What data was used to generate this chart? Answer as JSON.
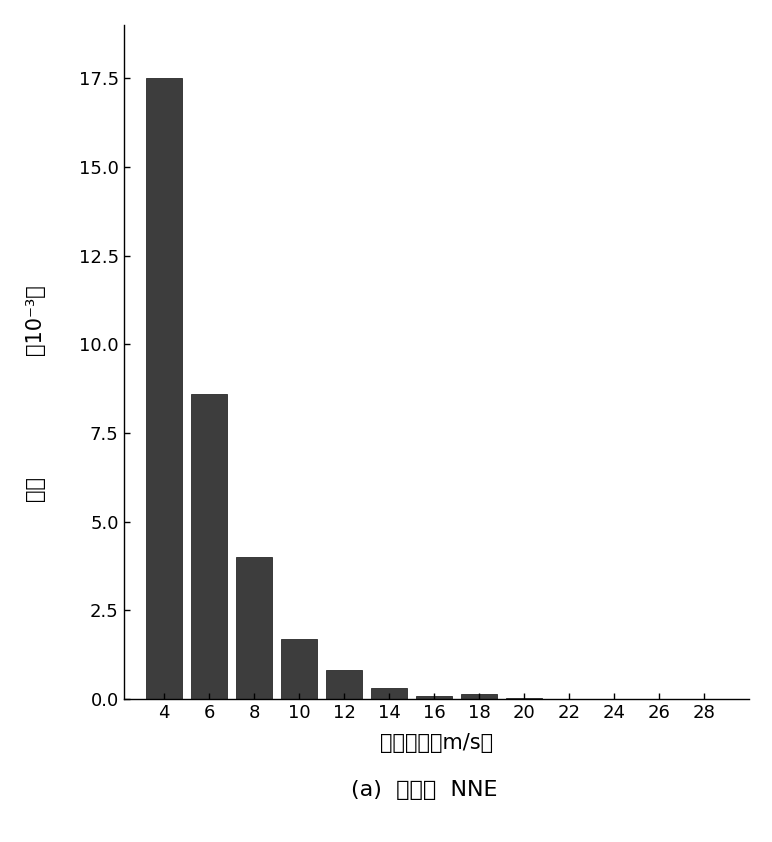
{
  "bar_positions": [
    4,
    6,
    8,
    10,
    12,
    14,
    16,
    18,
    20,
    22,
    24,
    26,
    28
  ],
  "bar_values": [
    17.5,
    8.6,
    4.0,
    1.7,
    0.8,
    0.3,
    0.07,
    0.13,
    0.02,
    0.01,
    0.005,
    0.002,
    0.001
  ],
  "bar_width": 1.6,
  "bar_color": "#3d3d3d",
  "bar_edgecolor": "#2a2a2a",
  "xlim": [
    2.2,
    30
  ],
  "ylim": [
    0,
    19.0
  ],
  "xticks": [
    4,
    6,
    8,
    10,
    12,
    14,
    16,
    18,
    20,
    22,
    24,
    26,
    28
  ],
  "yticks": [
    0.0,
    2.5,
    5.0,
    7.5,
    10.0,
    12.5,
    15.0,
    17.5
  ],
  "xlabel": "参考风速（m/s）",
  "ylabel_top": "（10⁻³）",
  "ylabel_bottom": "概率",
  "caption": "(a)  风向：  NNE",
  "xlabel_fontsize": 15,
  "ylabel_fontsize": 15,
  "tick_fontsize": 13,
  "caption_fontsize": 16,
  "background_color": "#ffffff"
}
